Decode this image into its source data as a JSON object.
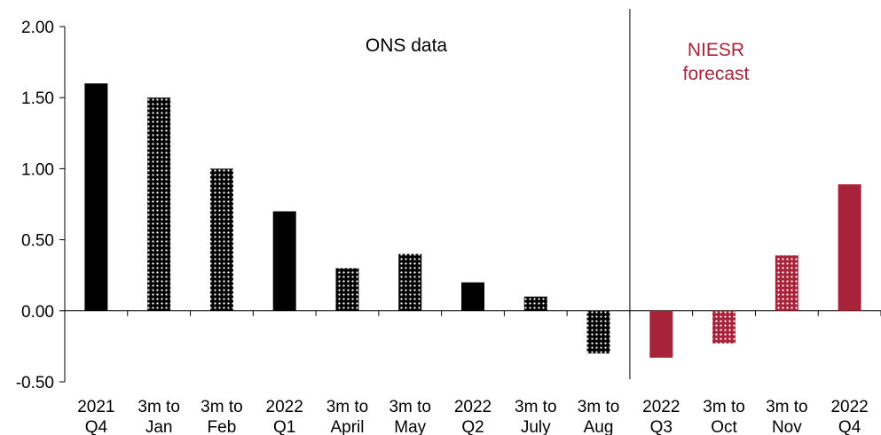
{
  "chart_data": {
    "type": "bar",
    "title": "",
    "xlabel": "",
    "ylabel": "",
    "ylim": [
      -0.5,
      2.0
    ],
    "yticks": [
      "2.00",
      "1.50",
      "1.00",
      "0.50",
      "0.00",
      "-0.50"
    ],
    "ytick_values": [
      2.0,
      1.5,
      1.0,
      0.5,
      0.0,
      -0.5
    ],
    "grid": false,
    "legend": "none",
    "categories": [
      [
        "2021",
        "Q4"
      ],
      [
        "3m to",
        "Jan"
      ],
      [
        "3m to",
        "Feb"
      ],
      [
        "2022",
        "Q1"
      ],
      [
        "3m to",
        "April"
      ],
      [
        "3m to",
        "May"
      ],
      [
        "2022",
        "Q2"
      ],
      [
        "3m to",
        "July"
      ],
      [
        "3m to",
        "Aug"
      ],
      [
        "2022",
        "Q3"
      ],
      [
        "3m to",
        "Oct"
      ],
      [
        "3m to",
        "Nov"
      ],
      [
        "2022",
        "Q4"
      ]
    ],
    "values": [
      1.6,
      1.5,
      1.0,
      0.7,
      0.3,
      0.4,
      0.2,
      0.1,
      -0.3,
      -0.33,
      -0.23,
      0.39,
      0.89
    ],
    "styles": [
      "solid-black",
      "dotted-black",
      "dotted-black",
      "solid-black",
      "dotted-black",
      "dotted-black",
      "solid-black",
      "dotted-black",
      "dotted-black",
      "solid-red",
      "dotted-red",
      "dotted-red",
      "solid-red"
    ],
    "divider_after_index": 8,
    "annotations": [
      {
        "text_lines": [
          "ONS data"
        ],
        "color": "#000000"
      },
      {
        "text_lines": [
          "NIESR",
          "forecast"
        ],
        "color": "#a8233a"
      }
    ],
    "colors": {
      "black": "#000000",
      "red": "#a8233a"
    }
  }
}
